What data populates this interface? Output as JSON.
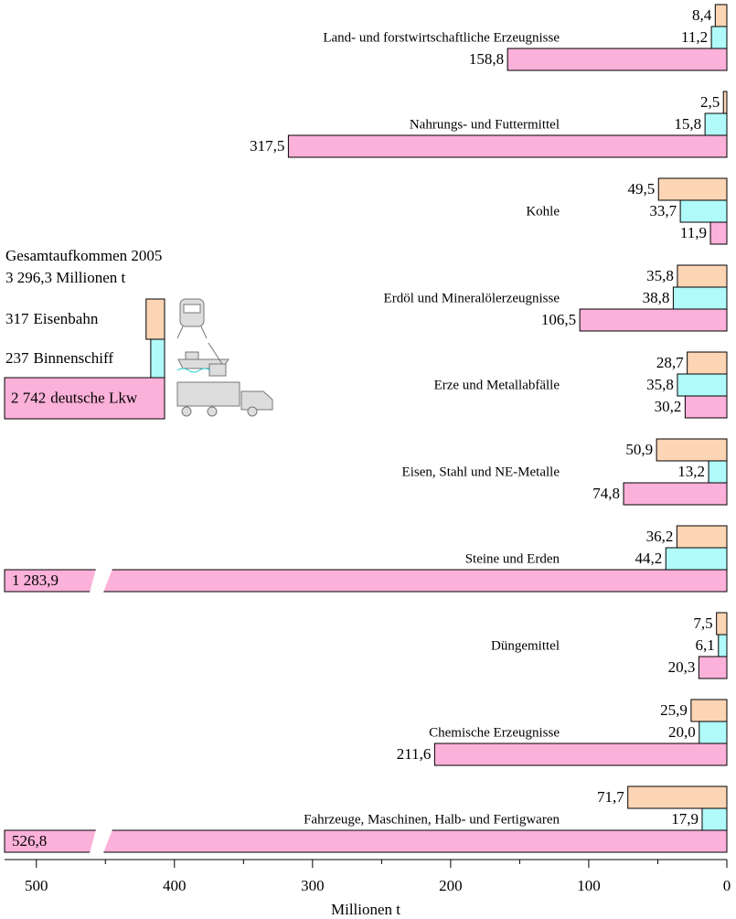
{
  "chart_data": {
    "type": "bar",
    "orientation": "horizontal-reversed",
    "categories": [
      "Land- und forstwirtschaftliche Erzeugnisse",
      "Nahrungs- und Futtermittel",
      "Kohle",
      "Erdöl und Mineralölerzeugnisse",
      "Erze und Metallabfälle",
      "Eisen, Stahl und NE-Metalle",
      "Steine und Erden",
      "Düngemittel",
      "Chemische Erzeugnisse",
      "Fahrzeuge, Maschinen, Halb- und Fertigwaren"
    ],
    "series": [
      {
        "name": "Eisenbahn",
        "color": "#fcd5b4",
        "total": 317,
        "values": [
          8.4,
          2.5,
          49.5,
          35.8,
          28.7,
          50.9,
          36.2,
          7.5,
          25.9,
          71.7
        ],
        "value_labels": [
          "8,4",
          "2,5",
          "49,5",
          "35,8",
          "28,7",
          "50,9",
          "36,2",
          "7,5",
          "25,9",
          "71,7"
        ]
      },
      {
        "name": "Binnenschiff",
        "color": "#b0fafa",
        "total": 237,
        "values": [
          11.2,
          15.8,
          33.7,
          38.8,
          35.8,
          13.2,
          44.2,
          6.1,
          20,
          17.9
        ],
        "value_labels": [
          "11,2",
          "15,8",
          "33,7",
          "38,8",
          "35,8",
          "13,2",
          "44,2",
          "6,1",
          "20,0",
          "17,9"
        ]
      },
      {
        "name": "deutsche Lkw",
        "color": "#fbb1d9",
        "total": 2742,
        "total_label": "2 742",
        "values": [
          158.8,
          317.5,
          11.9,
          106.5,
          30.2,
          74.8,
          1283.9,
          20.3,
          211.6,
          526.8
        ],
        "value_labels": [
          "158,8",
          "317,5",
          "11,9",
          "106,5",
          "30,2",
          "74,8",
          "1 283,9",
          "20,3",
          "211,6",
          "526,8"
        ]
      }
    ],
    "legend_title": "Gesamtaufkommen 2005",
    "legend_subtitle": "3 296,3  Millionen t",
    "xlabel": "Millionen t",
    "xlim": [
      0,
      523
    ],
    "xticks": [
      500,
      400,
      300,
      200,
      100,
      0
    ],
    "xminorticks": [
      450,
      350,
      250,
      150,
      50
    ]
  }
}
